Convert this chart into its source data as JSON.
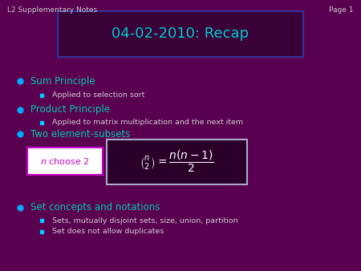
{
  "bg_color": "#5a0050",
  "title": "04-02-2010: Recap",
  "title_color": "#00cccc",
  "title_box_edge": "#333399",
  "header_text": "L2 Supplementary Notes",
  "header_color": "#cccccc",
  "page_text": "Page 1",
  "page_color": "#cccccc",
  "bullet_color": "#00aaff",
  "sub_bullet_color": "#00ccff",
  "main_items": [
    {
      "text": "Sum Principle",
      "color": "#00ccaa"
    },
    {
      "text": "Product Principle",
      "color": "#00ccaa"
    },
    {
      "text": "Two element-subsets",
      "color": "#00ccaa"
    },
    {
      "text": "Set concepts and notations",
      "color": "#00ccaa"
    }
  ],
  "sub_items": {
    "0": [
      {
        "text": "Applied to selection sort",
        "color": "#cccccc"
      }
    ],
    "1": [
      {
        "text": "Applied to matrix multiplication and the next item",
        "color": "#cccccc"
      }
    ],
    "2": [],
    "3": [
      {
        "text": "Sets, mutually disjoint sets, size, union, partition",
        "color": "#cccccc"
      },
      {
        "text": "Set does not allow duplicates",
        "color": "#cccccc"
      }
    ]
  },
  "formula_box_color": "#ffffff",
  "formula_border": "#333399",
  "nchoose_box_color": "#ffffff",
  "nchoose_border": "#cc00cc"
}
